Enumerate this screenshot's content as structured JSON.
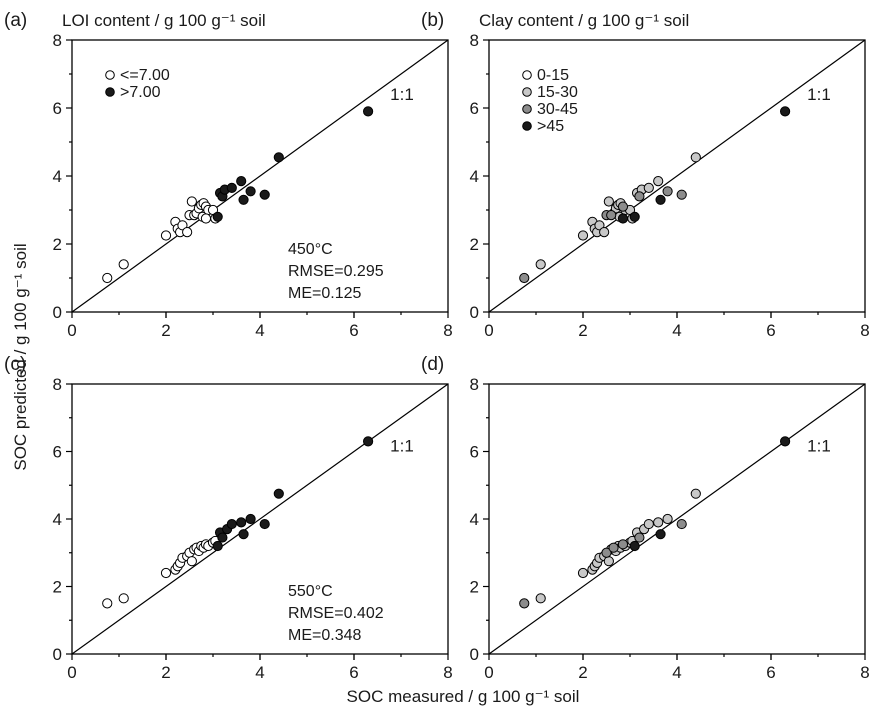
{
  "figure": {
    "xlabel": "SOC measured / g 100 g⁻¹ soil",
    "ylabel": "SOC predicted / g 100 g⁻¹ soil"
  },
  "panels": [
    {
      "id": "a",
      "letter": "(a)",
      "title": "LOI content / g 100 g⁻¹ soil",
      "ref_label": "1:1",
      "legend": [
        {
          "label": "<=7.00",
          "color": "#ffffff"
        },
        {
          "label": ">7.00",
          "color": "#1a1a1a"
        }
      ],
      "annotation": [
        "450°C",
        "RMSE=0.295",
        "ME=0.125"
      ]
    },
    {
      "id": "b",
      "letter": "(b)",
      "title": "Clay content / g 100 g⁻¹ soil",
      "ref_label": "1:1",
      "legend": [
        {
          "label": "0-15",
          "color": "#ffffff"
        },
        {
          "label": "15-30",
          "color": "#c8c8c8"
        },
        {
          "label": "30-45",
          "color": "#8c8c8c"
        },
        {
          "label": ">45",
          "color": "#1a1a1a"
        }
      ],
      "annotation": []
    },
    {
      "id": "c",
      "letter": "(c)",
      "title": "",
      "ref_label": "1:1",
      "legend": [],
      "annotation": [
        "550°C",
        "RMSE=0.402",
        "ME=0.348"
      ]
    },
    {
      "id": "d",
      "letter": "(d)",
      "title": "",
      "ref_label": "1:1",
      "legend": [],
      "annotation": []
    }
  ],
  "chart_data": [
    {
      "type": "scatter",
      "panel": "a",
      "xlim": [
        0,
        8
      ],
      "ylim": [
        0,
        8
      ],
      "xticks": [
        0,
        2,
        4,
        6,
        8
      ],
      "yticks": [
        0,
        2,
        4,
        6,
        8
      ],
      "reference_line": "1:1",
      "series": [
        {
          "name": "<=7.00",
          "color": "#ffffff",
          "points": [
            [
              0.75,
              1.0
            ],
            [
              1.1,
              1.4
            ],
            [
              2.0,
              2.25
            ],
            [
              2.2,
              2.65
            ],
            [
              2.25,
              2.45
            ],
            [
              2.3,
              2.35
            ],
            [
              2.35,
              2.55
            ],
            [
              2.45,
              2.35
            ],
            [
              2.5,
              2.85
            ],
            [
              2.55,
              3.25
            ],
            [
              2.6,
              2.85
            ],
            [
              2.65,
              2.9
            ],
            [
              2.7,
              3.05
            ],
            [
              2.75,
              3.15
            ],
            [
              2.78,
              2.8
            ],
            [
              2.8,
              3.2
            ],
            [
              2.85,
              3.1
            ],
            [
              2.9,
              3.0
            ],
            [
              2.85,
              2.75
            ],
            [
              3.0,
              3.0
            ],
            [
              3.05,
              2.75
            ]
          ]
        },
        {
          "name": ">7.00",
          "color": "#1a1a1a",
          "points": [
            [
              3.1,
              2.8
            ],
            [
              3.15,
              3.5
            ],
            [
              3.2,
              3.4
            ],
            [
              3.25,
              3.6
            ],
            [
              3.4,
              3.65
            ],
            [
              3.6,
              3.85
            ],
            [
              3.65,
              3.3
            ],
            [
              3.8,
              3.55
            ],
            [
              4.1,
              3.45
            ],
            [
              4.4,
              4.55
            ],
            [
              6.3,
              5.9
            ]
          ]
        }
      ]
    },
    {
      "type": "scatter",
      "panel": "b",
      "xlim": [
        0,
        8
      ],
      "ylim": [
        0,
        8
      ],
      "xticks": [
        0,
        2,
        4,
        6,
        8
      ],
      "yticks": [
        0,
        2,
        4,
        6,
        8
      ],
      "reference_line": "1:1",
      "series": [
        {
          "name": "15-30",
          "color": "#c8c8c8",
          "points": [
            [
              1.1,
              1.4
            ],
            [
              2.0,
              2.25
            ],
            [
              2.2,
              2.65
            ],
            [
              2.25,
              2.45
            ],
            [
              2.3,
              2.35
            ],
            [
              2.35,
              2.55
            ],
            [
              2.45,
              2.35
            ],
            [
              2.55,
              3.25
            ],
            [
              2.65,
              2.9
            ],
            [
              2.7,
              3.05
            ],
            [
              2.75,
              3.15
            ],
            [
              2.78,
              2.8
            ],
            [
              2.8,
              3.2
            ],
            [
              2.9,
              3.0
            ],
            [
              3.0,
              3.0
            ],
            [
              3.05,
              2.75
            ],
            [
              3.15,
              3.5
            ],
            [
              3.25,
              3.6
            ],
            [
              3.4,
              3.65
            ],
            [
              3.6,
              3.85
            ],
            [
              4.4,
              4.55
            ]
          ]
        },
        {
          "name": "30-45",
          "color": "#8c8c8c",
          "points": [
            [
              0.75,
              1.0
            ],
            [
              2.5,
              2.85
            ],
            [
              2.6,
              2.85
            ],
            [
              2.85,
              3.1
            ],
            [
              3.2,
              3.4
            ],
            [
              3.8,
              3.55
            ],
            [
              4.1,
              3.45
            ]
          ]
        },
        {
          "name": ">45",
          "color": "#1a1a1a",
          "points": [
            [
              2.85,
              2.75
            ],
            [
              3.1,
              2.8
            ],
            [
              3.65,
              3.3
            ],
            [
              6.3,
              5.9
            ]
          ]
        }
      ]
    },
    {
      "type": "scatter",
      "panel": "c",
      "xlim": [
        0,
        8
      ],
      "ylim": [
        0,
        8
      ],
      "xticks": [
        0,
        2,
        4,
        6,
        8
      ],
      "yticks": [
        0,
        2,
        4,
        6,
        8
      ],
      "reference_line": "1:1",
      "series": [
        {
          "name": "<=7.00",
          "color": "#ffffff",
          "points": [
            [
              0.75,
              1.5
            ],
            [
              1.1,
              1.65
            ],
            [
              2.0,
              2.4
            ],
            [
              2.2,
              2.5
            ],
            [
              2.25,
              2.6
            ],
            [
              2.3,
              2.7
            ],
            [
              2.35,
              2.85
            ],
            [
              2.45,
              2.9
            ],
            [
              2.5,
              3.0
            ],
            [
              2.55,
              2.75
            ],
            [
              2.6,
              3.1
            ],
            [
              2.65,
              3.15
            ],
            [
              2.7,
              3.05
            ],
            [
              2.75,
              3.2
            ],
            [
              2.8,
              3.15
            ],
            [
              2.85,
              3.25
            ],
            [
              2.9,
              3.2
            ],
            [
              3.0,
              3.3
            ],
            [
              3.05,
              3.35
            ]
          ]
        },
        {
          "name": ">7.00",
          "color": "#1a1a1a",
          "points": [
            [
              3.1,
              3.2
            ],
            [
              3.15,
              3.6
            ],
            [
              3.2,
              3.45
            ],
            [
              3.3,
              3.7
            ],
            [
              3.4,
              3.85
            ],
            [
              3.6,
              3.9
            ],
            [
              3.65,
              3.55
            ],
            [
              3.8,
              4.0
            ],
            [
              4.1,
              3.85
            ],
            [
              4.4,
              4.75
            ],
            [
              6.3,
              6.3
            ]
          ]
        }
      ]
    },
    {
      "type": "scatter",
      "panel": "d",
      "xlim": [
        0,
        8
      ],
      "ylim": [
        0,
        8
      ],
      "xticks": [
        0,
        2,
        4,
        6,
        8
      ],
      "yticks": [
        0,
        2,
        4,
        6,
        8
      ],
      "reference_line": "1:1",
      "series": [
        {
          "name": "15-30",
          "color": "#c8c8c8",
          "points": [
            [
              1.1,
              1.65
            ],
            [
              2.0,
              2.4
            ],
            [
              2.2,
              2.5
            ],
            [
              2.25,
              2.6
            ],
            [
              2.3,
              2.7
            ],
            [
              2.35,
              2.85
            ],
            [
              2.45,
              2.9
            ],
            [
              2.55,
              2.75
            ],
            [
              2.6,
              3.1
            ],
            [
              2.7,
              3.05
            ],
            [
              2.75,
              3.2
            ],
            [
              2.8,
              3.15
            ],
            [
              2.9,
              3.2
            ],
            [
              3.0,
              3.3
            ],
            [
              3.05,
              3.35
            ],
            [
              3.15,
              3.6
            ],
            [
              3.3,
              3.7
            ],
            [
              3.4,
              3.85
            ],
            [
              3.6,
              3.9
            ],
            [
              3.8,
              4.0
            ],
            [
              4.4,
              4.75
            ]
          ]
        },
        {
          "name": "30-45",
          "color": "#8c8c8c",
          "points": [
            [
              0.75,
              1.5
            ],
            [
              2.5,
              3.0
            ],
            [
              2.65,
              3.15
            ],
            [
              2.85,
              3.25
            ],
            [
              3.2,
              3.45
            ],
            [
              4.1,
              3.85
            ]
          ]
        },
        {
          "name": ">45",
          "color": "#1a1a1a",
          "points": [
            [
              3.1,
              3.2
            ],
            [
              3.65,
              3.55
            ],
            [
              6.3,
              6.3
            ]
          ]
        }
      ]
    }
  ]
}
